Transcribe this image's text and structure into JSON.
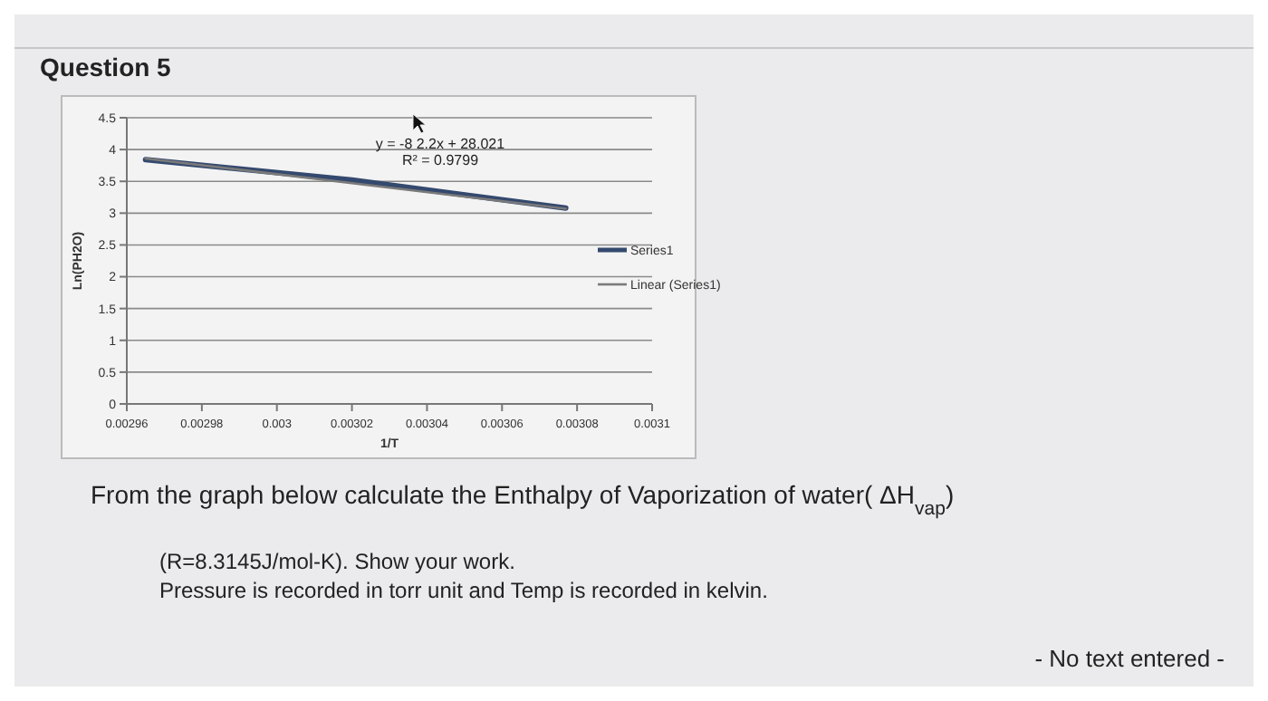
{
  "chart_data": {
    "type": "line",
    "title": "Question 5",
    "xlabel": "1/T",
    "ylabel": "Ln(PH2O)",
    "xlim": [
      0.00296,
      0.0031
    ],
    "xticks": [
      0.00296,
      0.00298,
      0.003,
      0.00302,
      0.00304,
      0.00306,
      0.00308,
      0.0031
    ],
    "ylim": [
      0,
      4.5
    ],
    "yticks": [
      0,
      0.5,
      1,
      1.5,
      2,
      2.5,
      3,
      3.5,
      4,
      4.5
    ],
    "grid": "y",
    "legend": "right",
    "marker": "none",
    "series": [
      {
        "name": "Series1",
        "color": "#34496e",
        "x": [
          0.002965,
          0.00302,
          0.003077
        ],
        "values": [
          3.84,
          3.52,
          3.08
        ]
      },
      {
        "name": "Linear (Series1)",
        "color": "#7a7a7a",
        "x": [
          0.002965,
          0.003077
        ],
        "values": [
          3.86,
          3.07
        ]
      }
    ],
    "annotations": [
      "y = -8 2.2x + 28.021",
      "R² = 0.9799",
      "From the graph below calculate the Enthalpy of Vaporization of water( ΔH$_{vap}$)",
      "(R=8.3145J/mol-K). Show your work.",
      "Pressure is recorded in torr unit and Temp is recorded in kelvin.",
      "- No text entered -"
    ]
  }
}
